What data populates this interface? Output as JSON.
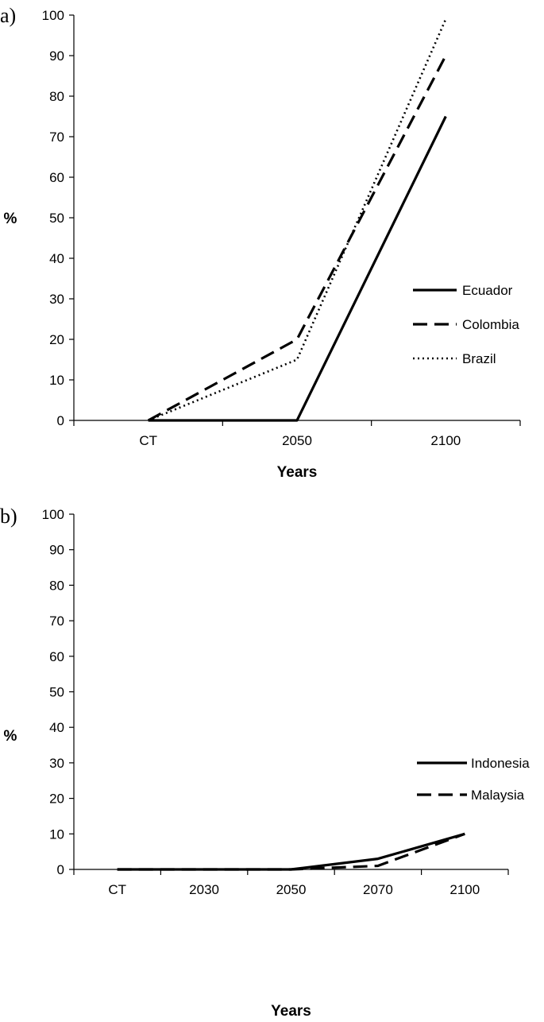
{
  "chart_data": [
    {
      "type": "line",
      "panel_label": "a)",
      "categories": [
        "CT",
        "2050",
        "2100"
      ],
      "xlabel": "Years",
      "ylabel": "%",
      "ylim": [
        0,
        100
      ],
      "yticks": [
        0,
        10,
        20,
        30,
        40,
        50,
        60,
        70,
        80,
        90,
        100
      ],
      "grid": false,
      "legend_position": "right",
      "series": [
        {
          "name": "Ecuador",
          "style": "solid",
          "values": [
            0,
            0,
            75
          ]
        },
        {
          "name": "Colombia",
          "style": "dashed",
          "values": [
            0,
            20,
            90
          ]
        },
        {
          "name": "Brazil",
          "style": "dotted",
          "values": [
            0,
            15,
            99
          ]
        }
      ]
    },
    {
      "type": "line",
      "panel_label": "b)",
      "categories": [
        "CT",
        "2030",
        "2050",
        "2070",
        "2100"
      ],
      "xlabel": "Years",
      "ylabel": "%",
      "ylim": [
        0,
        100
      ],
      "yticks": [
        0,
        10,
        20,
        30,
        40,
        50,
        60,
        70,
        80,
        90,
        100
      ],
      "grid": false,
      "legend_position": "right",
      "series": [
        {
          "name": "Indonesia",
          "style": "solid",
          "values": [
            0,
            0,
            0,
            3,
            10
          ]
        },
        {
          "name": "Malaysia",
          "style": "dashed",
          "values": [
            0,
            0,
            0,
            1,
            10
          ]
        }
      ]
    }
  ]
}
